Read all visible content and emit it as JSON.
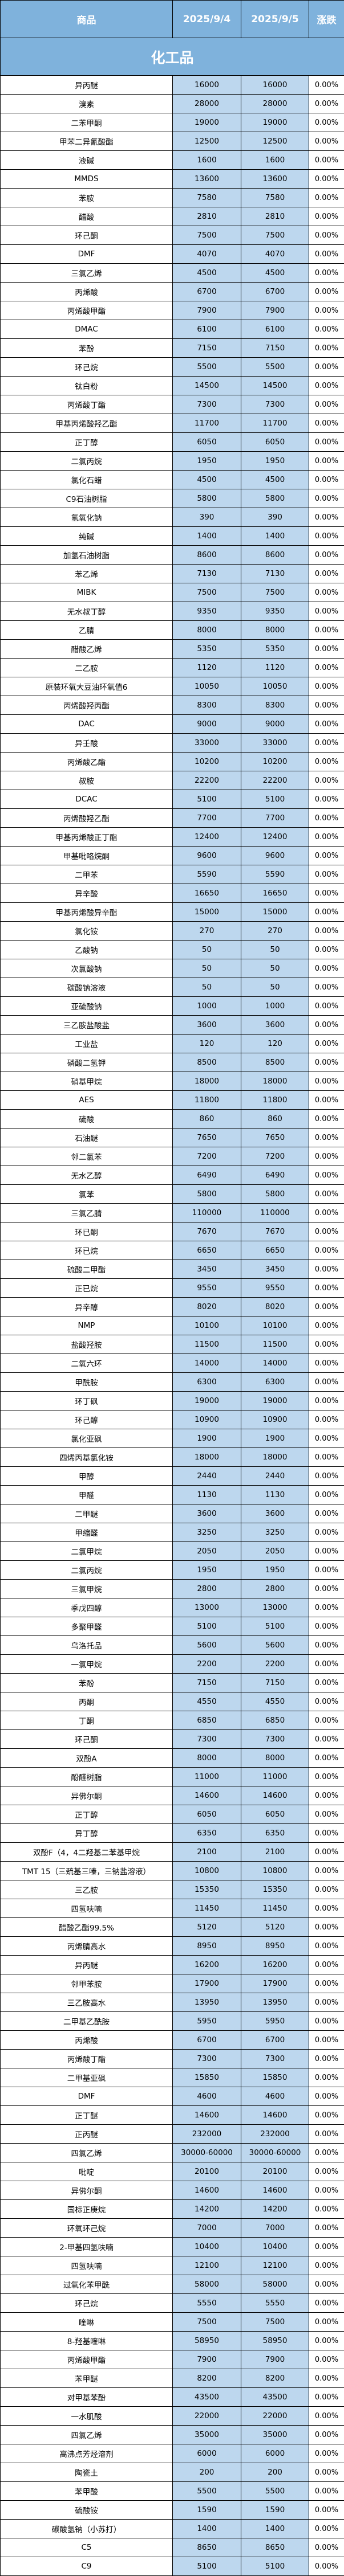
{
  "header": {
    "product": "商品",
    "date1": "2025/9/4",
    "date2": "2025/9/5",
    "change": "涨跌"
  },
  "section_title": "化工品",
  "colors": {
    "header_bg": "#7fb2dc",
    "value_bg": "#bdd7ee",
    "header_text": "#ffffff"
  },
  "rows": [
    [
      "异丙醚",
      "16000",
      "16000",
      "0.00%"
    ],
    [
      "溴素",
      "28000",
      "28000",
      "0.00%"
    ],
    [
      "二苯甲酮",
      "19000",
      "19000",
      "0.00%"
    ],
    [
      "甲苯二异氰酸酯",
      "12500",
      "12500",
      "0.00%"
    ],
    [
      "液碱",
      "1600",
      "1600",
      "0.00%"
    ],
    [
      "MMDS",
      "13600",
      "13600",
      "0.00%"
    ],
    [
      "苯胺",
      "7580",
      "7580",
      "0.00%"
    ],
    [
      "醋酸",
      "2810",
      "2810",
      "0.00%"
    ],
    [
      "环己酮",
      "7500",
      "7500",
      "0.00%"
    ],
    [
      "DMF",
      "4070",
      "4070",
      "0.00%"
    ],
    [
      "三氯乙烯",
      "4500",
      "4500",
      "0.00%"
    ],
    [
      "丙烯酸",
      "6700",
      "6700",
      "0.00%"
    ],
    [
      "丙烯酸甲酯",
      "7900",
      "7900",
      "0.00%"
    ],
    [
      "DMAC",
      "6100",
      "6100",
      "0.00%"
    ],
    [
      "苯酚",
      "7150",
      "7150",
      "0.00%"
    ],
    [
      "环己烷",
      "5500",
      "5500",
      "0.00%"
    ],
    [
      "钛白粉",
      "14500",
      "14500",
      "0.00%"
    ],
    [
      "丙烯酸丁酯",
      "7300",
      "7300",
      "0.00%"
    ],
    [
      "甲基丙烯酸羟乙酯",
      "11700",
      "11700",
      "0.00%"
    ],
    [
      "正丁醇",
      "6050",
      "6050",
      "0.00%"
    ],
    [
      "二氯丙烷",
      "1950",
      "1950",
      "0.00%"
    ],
    [
      "氯化石蜡",
      "4500",
      "4500",
      "0.00%"
    ],
    [
      "C9石油树脂",
      "5800",
      "5800",
      "0.00%"
    ],
    [
      "氢氧化钠",
      "390",
      "390",
      "0.00%"
    ],
    [
      "纯碱",
      "1400",
      "1400",
      "0.00%"
    ],
    [
      "加氢石油树脂",
      "8600",
      "8600",
      "0.00%"
    ],
    [
      "苯乙烯",
      "7130",
      "7130",
      "0.00%"
    ],
    [
      "MIBK",
      "7500",
      "7500",
      "0.00%"
    ],
    [
      "无水叔丁醇",
      "9350",
      "9350",
      "0.00%"
    ],
    [
      "乙腈",
      "8000",
      "8000",
      "0.00%"
    ],
    [
      "醋酸乙烯",
      "5350",
      "5350",
      "0.00%"
    ],
    [
      "二乙胺",
      "1120",
      "1120",
      "0.00%"
    ],
    [
      "原装环氧大豆油环氧值6",
      "10050",
      "10050",
      "0.00%"
    ],
    [
      "丙烯酸羟丙酯",
      "8300",
      "8300",
      "0.00%"
    ],
    [
      "DAC",
      "9000",
      "9000",
      "0.00%"
    ],
    [
      "异壬酸",
      "33000",
      "33000",
      "0.00%"
    ],
    [
      "丙烯酸乙酯",
      "10200",
      "10200",
      "0.00%"
    ],
    [
      "叔胺",
      "22200",
      "22200",
      "0.00%"
    ],
    [
      "DCAC",
      "5100",
      "5100",
      "0.00%"
    ],
    [
      "丙烯酸羟乙酯",
      "7700",
      "7700",
      "0.00%"
    ],
    [
      "甲基丙烯酸正丁酯",
      "12400",
      "12400",
      "0.00%"
    ],
    [
      "甲基吡咯烷酮",
      "9600",
      "9600",
      "0.00%"
    ],
    [
      "二甲苯",
      "5590",
      "5590",
      "0.00%"
    ],
    [
      "异辛酸",
      "16650",
      "16650",
      "0.00%"
    ],
    [
      "甲基丙烯酸异辛酯",
      "15000",
      "15000",
      "0.00%"
    ],
    [
      "氯化铵",
      "270",
      "270",
      "0.00%"
    ],
    [
      "乙酸钠",
      "50",
      "50",
      "0.00%"
    ],
    [
      "次氯酸钠",
      "50",
      "50",
      "0.00%"
    ],
    [
      "碳酸钠溶液",
      "50",
      "50",
      "0.00%"
    ],
    [
      "亚硫酸钠",
      "1000",
      "1000",
      "0.00%"
    ],
    [
      "三乙胺盐酸盐",
      "3600",
      "3600",
      "0.00%"
    ],
    [
      "工业盐",
      "120",
      "120",
      "0.00%"
    ],
    [
      "磷酸二氢钾",
      "8500",
      "8500",
      "0.00%"
    ],
    [
      "硝基甲烷",
      "18000",
      "18000",
      "0.00%"
    ],
    [
      "AES",
      "11800",
      "11800",
      "0.00%"
    ],
    [
      "硫酸",
      "860",
      "860",
      "0.00%"
    ],
    [
      "石油醚",
      "7650",
      "7650",
      "0.00%"
    ],
    [
      "邻二氯苯",
      "7200",
      "7200",
      "0.00%"
    ],
    [
      "无水乙醇",
      "6490",
      "6490",
      "0.00%"
    ],
    [
      "氯苯",
      "5800",
      "5800",
      "0.00%"
    ],
    [
      "三氯乙腈",
      "110000",
      "110000",
      "0.00%"
    ],
    [
      "环已酮",
      "7670",
      "7670",
      "0.00%"
    ],
    [
      "环已烷",
      "6650",
      "6650",
      "0.00%"
    ],
    [
      "硫酸二甲酯",
      "3450",
      "3450",
      "0.00%"
    ],
    [
      "正已烷",
      "9550",
      "9550",
      "0.00%"
    ],
    [
      "异辛醇",
      "8020",
      "8020",
      "0.00%"
    ],
    [
      "NMP",
      "10100",
      "10100",
      "0.00%"
    ],
    [
      "盐酸羟胺",
      "11500",
      "11500",
      "0.00%"
    ],
    [
      "二氧六环",
      "14000",
      "14000",
      "0.00%"
    ],
    [
      "甲酰胺",
      "6300",
      "6300",
      "0.00%"
    ],
    [
      "环丁砜",
      "19000",
      "19000",
      "0.00%"
    ],
    [
      "环己醇",
      "10900",
      "10900",
      "0.00%"
    ],
    [
      "氯化亚砜",
      "1900",
      "1900",
      "0.00%"
    ],
    [
      "四烯丙基氯化铵",
      "18000",
      "18000",
      "0.00%"
    ],
    [
      "甲醇",
      "2440",
      "2440",
      "0.00%"
    ],
    [
      "甲醛",
      "1130",
      "1130",
      "0.00%"
    ],
    [
      "二甲醚",
      "3600",
      "3600",
      "0.00%"
    ],
    [
      "甲缩醛",
      "3250",
      "3250",
      "0.00%"
    ],
    [
      "二氯甲烷",
      "2050",
      "2050",
      "0.00%"
    ],
    [
      "二氯丙烷",
      "1950",
      "1950",
      "0.00%"
    ],
    [
      "三氯甲烷",
      "2800",
      "2800",
      "0.00%"
    ],
    [
      "季戊四醇",
      "13000",
      "13000",
      "0.00%"
    ],
    [
      "多聚甲醛",
      "5100",
      "5100",
      "0.00%"
    ],
    [
      "乌洛托品",
      "5600",
      "5600",
      "0.00%"
    ],
    [
      "一氯甲烷",
      "2200",
      "2200",
      "0.00%"
    ],
    [
      "苯酚",
      "7150",
      "7150",
      "0.00%"
    ],
    [
      "丙酮",
      "4550",
      "4550",
      "0.00%"
    ],
    [
      "丁酮",
      "6850",
      "6850",
      "0.00%"
    ],
    [
      "环己酮",
      "7300",
      "7300",
      "0.00%"
    ],
    [
      "双酚A",
      "8000",
      "8000",
      "0.00%"
    ],
    [
      "酚醛树脂",
      "11000",
      "11000",
      "0.00%"
    ],
    [
      "异佛尔酮",
      "14600",
      "14600",
      "0.00%"
    ],
    [
      "正丁醇",
      "6050",
      "6050",
      "0.00%"
    ],
    [
      "异丁醇",
      "6350",
      "6350",
      "0.00%"
    ],
    [
      "双酚F（4，4二羟基二苯基甲烷",
      "2100",
      "2100",
      "0.00%"
    ],
    [
      "TMT 15（三巯基三嗪，三钠盐溶液）",
      "10800",
      "10800",
      "0.00%"
    ],
    [
      "三乙胺",
      "15350",
      "15350",
      "0.00%"
    ],
    [
      "四氢呋喃",
      "11450",
      "11450",
      "0.00%"
    ],
    [
      "醋酸乙酯99.5%",
      "5120",
      "5120",
      "0.00%"
    ],
    [
      "丙烯腈高水",
      "8950",
      "8950",
      "0.00%"
    ],
    [
      "异丙醚",
      "16200",
      "16200",
      "0.00%"
    ],
    [
      "邻甲苯胺",
      "17900",
      "17900",
      "0.00%"
    ],
    [
      "三乙胺高水",
      "13950",
      "13950",
      "0.00%"
    ],
    [
      "二甲基乙酰胺",
      "5950",
      "5950",
      "0.00%"
    ],
    [
      "丙烯酸",
      "6700",
      "6700",
      "0.00%"
    ],
    [
      "丙烯酸丁酯",
      "7300",
      "7300",
      "0.00%"
    ],
    [
      "二甲基亚砜",
      "15850",
      "15850",
      "0.00%"
    ],
    [
      "DMF",
      "4600",
      "4600",
      "0.00%"
    ],
    [
      "正丁醚",
      "14600",
      "14600",
      "0.00%"
    ],
    [
      "正丙醚",
      "232000",
      "232000",
      "0.00%"
    ],
    [
      "四氯乙烯",
      "30000-60000",
      "30000-60000",
      "0.00%"
    ],
    [
      "吡啶",
      "20100",
      "20100",
      "0.00%"
    ],
    [
      "异佛尔酮",
      "14600",
      "14600",
      "0.00%"
    ],
    [
      "国标正庚烷",
      "14200",
      "14200",
      "0.00%"
    ],
    [
      "环氧环己烷",
      "7000",
      "7000",
      "0.00%"
    ],
    [
      "2-甲基四氢呋喃",
      "10400",
      "10400",
      "0.00%"
    ],
    [
      "四氢呋喃",
      "12100",
      "12100",
      "0.00%"
    ],
    [
      "过氧化苯甲酰",
      "58000",
      "58000",
      "0.00%"
    ],
    [
      "环己烷",
      "5550",
      "5550",
      "0.00%"
    ],
    [
      "喹啉",
      "7500",
      "7500",
      "0.00%"
    ],
    [
      "8-羟基喹啉",
      "58950",
      "58950",
      "0.00%"
    ],
    [
      "丙烯酸甲酯",
      "7900",
      "7900",
      "0.00%"
    ],
    [
      "苯甲醚",
      "8200",
      "8200",
      "0.00%"
    ],
    [
      "对甲基苯酚",
      "43500",
      "43500",
      "0.00%"
    ],
    [
      "一水肌酸",
      "22000",
      "22000",
      "0.00%"
    ],
    [
      "四氯乙烯",
      "35000",
      "35000",
      "0.00%"
    ],
    [
      "高沸点芳烃溶剂",
      "6000",
      "6000",
      "0.00%"
    ],
    [
      "陶瓷土",
      "200",
      "200",
      "0.00%"
    ],
    [
      "苯甲酸",
      "5500",
      "5500",
      "0.00%"
    ],
    [
      "硫酸铵",
      "1590",
      "1590",
      "0.00%"
    ],
    [
      "碳酸氢钠（小苏打）",
      "1400",
      "1400",
      "0.00%"
    ],
    [
      "C5",
      "8650",
      "8650",
      "0.00%"
    ],
    [
      "C9",
      "5100",
      "5100",
      "0.00%"
    ]
  ]
}
